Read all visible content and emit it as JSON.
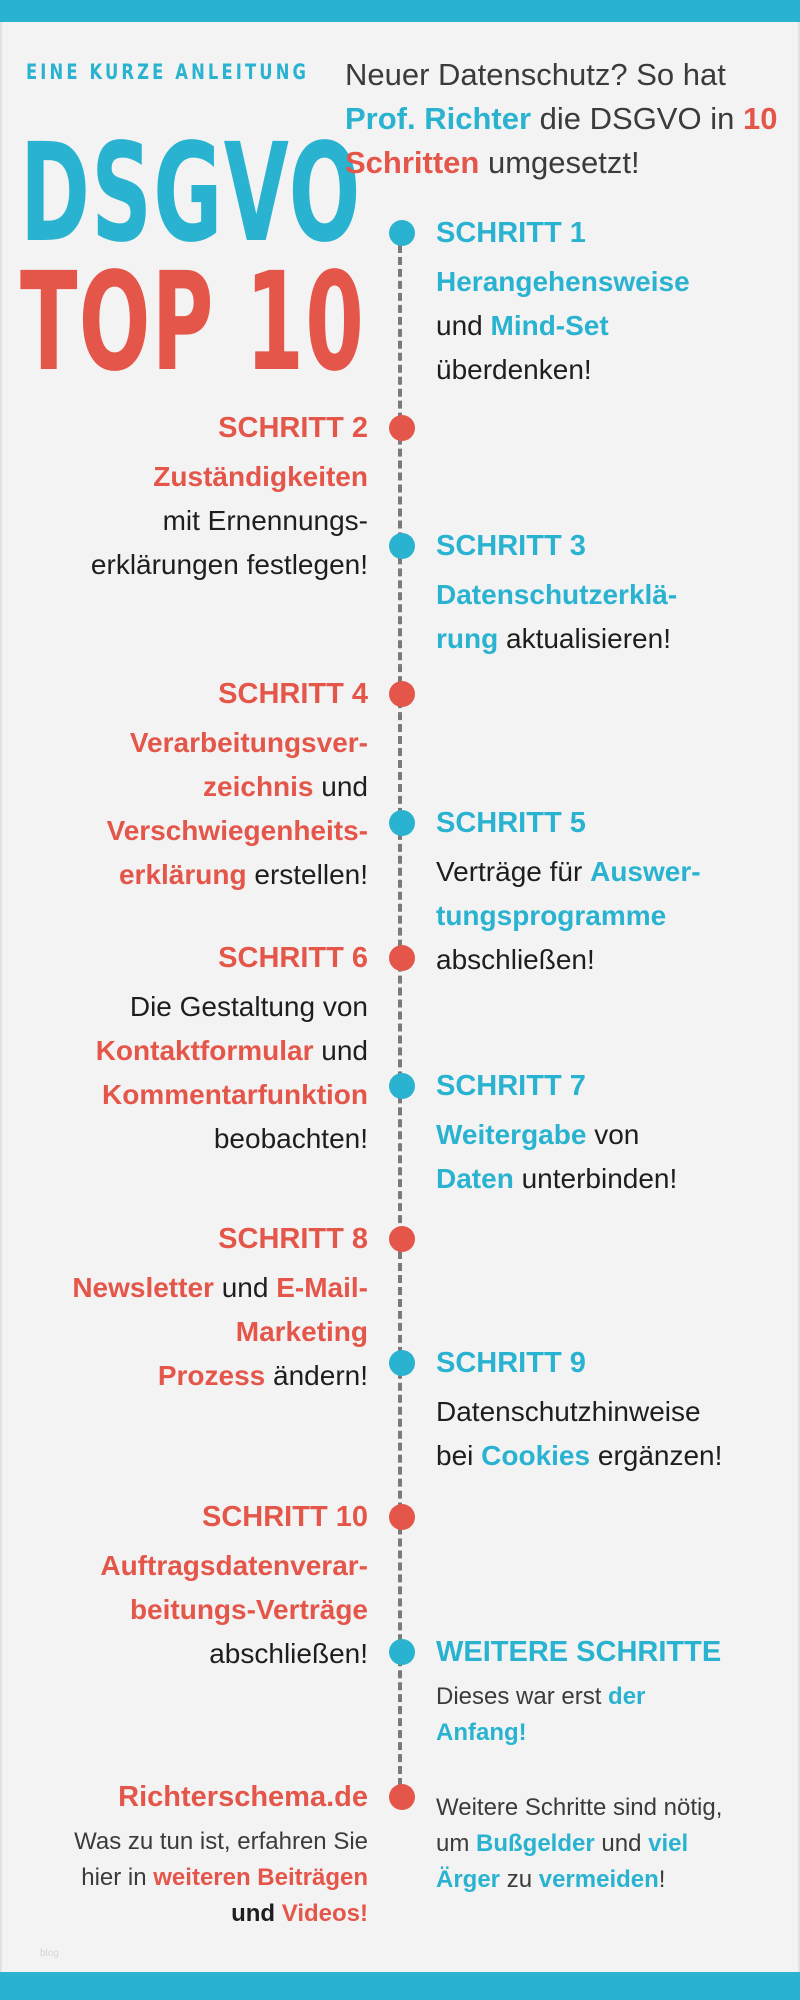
{
  "header": {
    "kicker": "EINE KURZE ANLEITUNG",
    "title_line1": "DSGVO",
    "title_line2": "TOP 10"
  },
  "intro": {
    "part1": "Neuer Datenschutz? So hat ",
    "name": "Prof. Richter",
    "part2": " die DSGVO in ",
    "steps": "10 Schritten",
    "part3": " umgesetzt!"
  },
  "steps": {
    "s1": {
      "head": "SCHRITT 1",
      "a": "Herangehensweise",
      "b": "und ",
      "c": "Mind-Set",
      "d": "überdenken!"
    },
    "s2": {
      "head": "SCHRITT 2",
      "a": "Zuständigkeiten",
      "b": "mit Ernennungs-",
      "c": "erklärungen festlegen!"
    },
    "s3": {
      "head": "SCHRITT 3",
      "a": "Datenschutzerklä-",
      "b": "rung",
      "c": " aktualisieren!"
    },
    "s4": {
      "head": "SCHRITT 4",
      "a": "Verarbeitungsver-",
      "b": "zeichnis",
      "c": " und ",
      "d": "Verschwiegenheits-",
      "e": "erklärung",
      "f": " erstellen!"
    },
    "s5": {
      "head": "SCHRITT 5",
      "a": "Verträge für ",
      "b": "Auswer-",
      "c": "tungsprogramme",
      "d": "abschließen!"
    },
    "s6": {
      "head": "SCHRITT 6",
      "a": "Die Gestaltung von",
      "b": "Kontaktformular",
      "c": " und",
      "d": "Kommentarfunktion",
      "e": "beobachten!"
    },
    "s7": {
      "head": "SCHRITT 7",
      "a": "Weitergabe",
      "b": " von",
      "c": "Daten",
      "d": " unterbinden!"
    },
    "s8": {
      "head": "SCHRITT 8",
      "a": "Newsletter",
      "b": " und ",
      "c": "E-Mail-",
      "d": "Marketing",
      "e": "Prozess",
      "f": " ändern!"
    },
    "s9": {
      "head": "SCHRITT 9",
      "a": "Datenschutzhinweise",
      "b": "bei ",
      "c": "Cookies",
      "d": " ergänzen!"
    },
    "s10": {
      "head": "SCHRITT 10",
      "a": "Auftragsdatenverar-",
      "b": "beitungs-Verträge",
      "c": "abschließen!"
    },
    "more": {
      "head": "WEITERE SCHRITTE",
      "a": "Dieses war erst ",
      "b": "der",
      "c": "Anfang!"
    }
  },
  "footer_left": {
    "head": "Richterschema.de",
    "a": "Was zu tun ist, erfahren Sie",
    "b": "hier in ",
    "c": "weiteren Beiträgen",
    "d": "und ",
    "e": "Videos!"
  },
  "footer_right": {
    "a": "Weitere Schritte sind nötig,",
    "b": "um ",
    "c": "Bußgelder",
    "d": " und ",
    "e": "viel",
    "f": "Ärger",
    "g": " zu ",
    "h": "vermeiden",
    "i": "!"
  },
  "watermark": "blog",
  "colors": {
    "accent_blue": "#2ab3d1",
    "accent_red": "#e5564a",
    "background": "#f3f3f3"
  }
}
